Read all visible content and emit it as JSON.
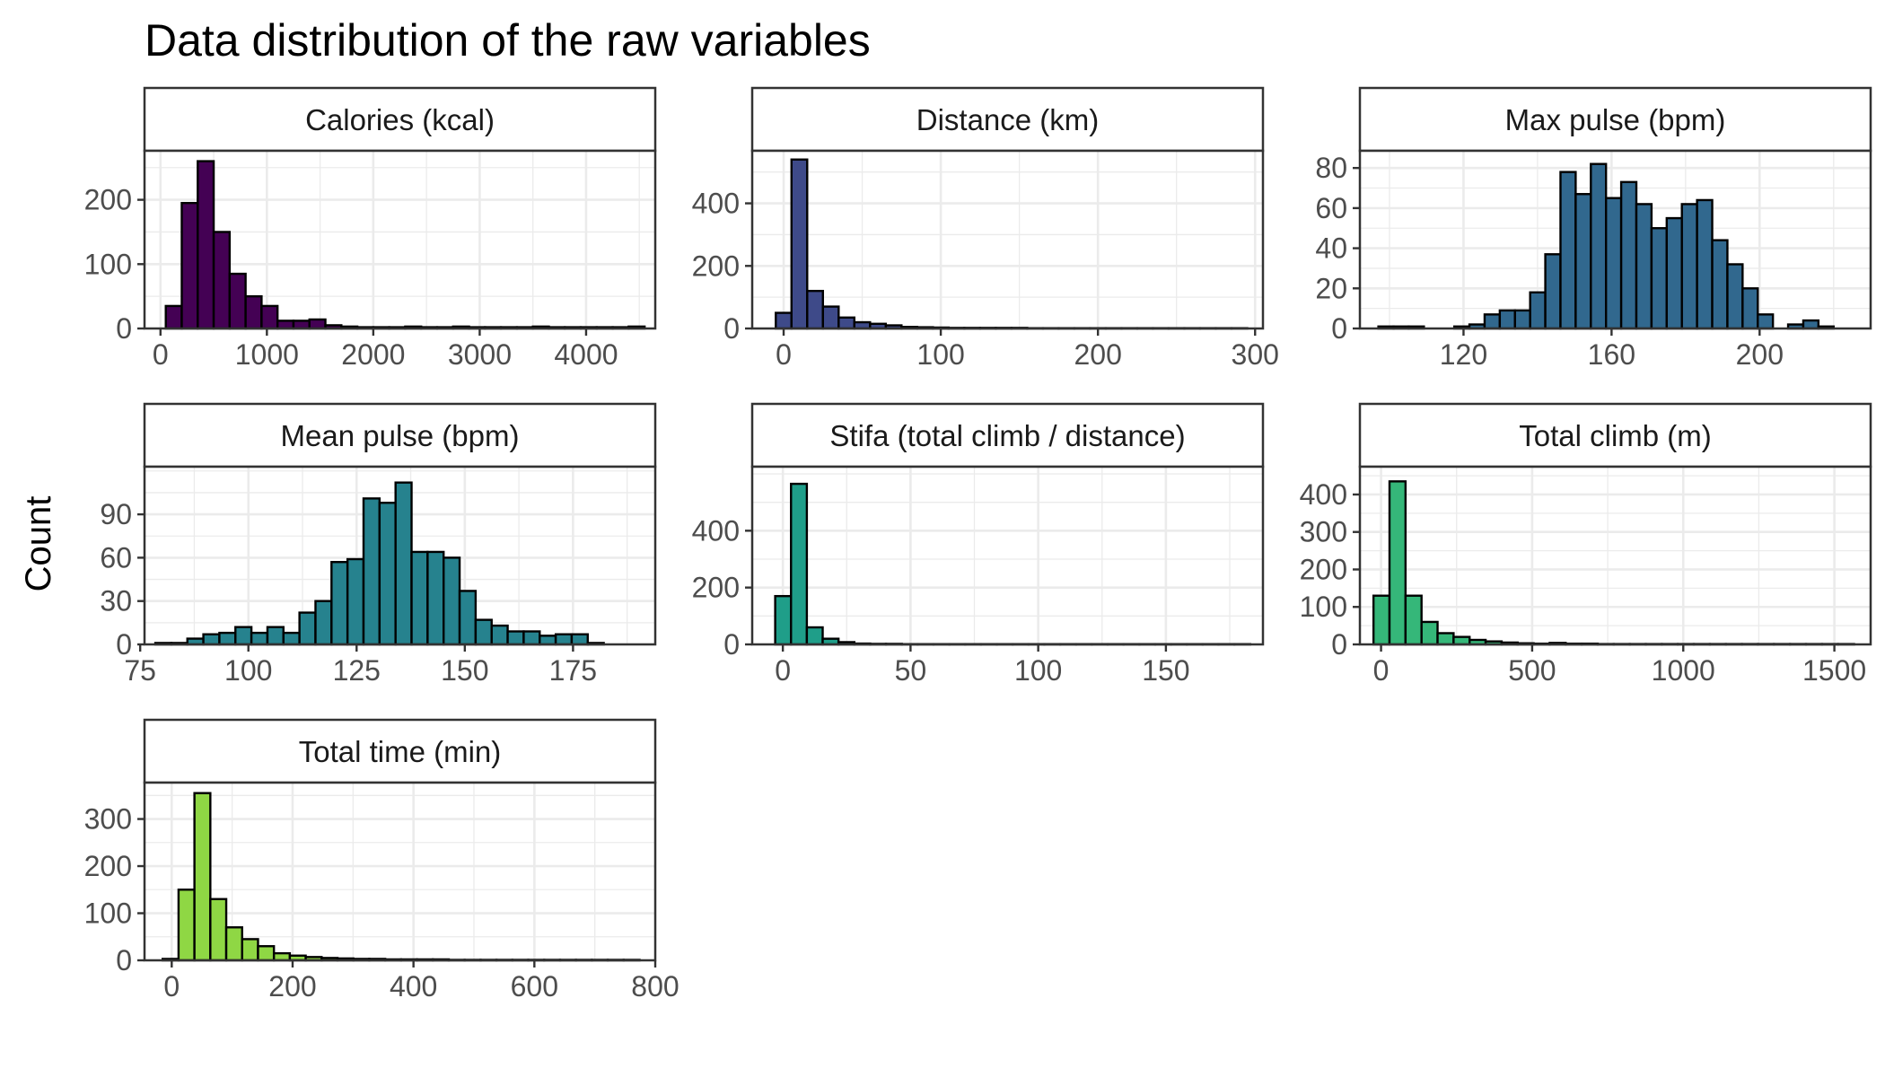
{
  "title": "Data distribution of the raw variables",
  "ylabel": "Count",
  "chart_data": [
    {
      "type": "bar",
      "histogram": true,
      "panel": "Calories (kcal)",
      "color": "#440154",
      "bin_start": 50,
      "bin_width": 150,
      "values": [
        35,
        195,
        260,
        150,
        85,
        50,
        35,
        12,
        12,
        14,
        5,
        3,
        2,
        2,
        2,
        3,
        2,
        2,
        3,
        2,
        2,
        2,
        2,
        3,
        2,
        2,
        2,
        2,
        2,
        3
      ],
      "xlim": [
        -150,
        4650
      ],
      "ylim": [
        0,
        265
      ],
      "xticks": [
        0,
        1000,
        2000,
        3000,
        4000
      ],
      "xtick_labels": [
        "0",
        "1000",
        "2000",
        "3000",
        "4000"
      ],
      "yticks": [
        0,
        100,
        200
      ],
      "ytick_labels": [
        "0",
        "100",
        "200"
      ]
    },
    {
      "type": "bar",
      "histogram": true,
      "panel": "Distance (km)",
      "color": "#3e4a89",
      "bin_start": -5,
      "bin_width": 10,
      "values": [
        50,
        540,
        120,
        70,
        35,
        20,
        15,
        10,
        5,
        4,
        3,
        2,
        2,
        2,
        2,
        2,
        1,
        1,
        1,
        1,
        1,
        1,
        1,
        1,
        1,
        1,
        1,
        1,
        1,
        1
      ],
      "xlim": [
        -20,
        305
      ],
      "ylim": [
        0,
        545
      ],
      "xticks": [
        0,
        100,
        200,
        300
      ],
      "xtick_labels": [
        "0",
        "100",
        "200",
        "300"
      ],
      "yticks": [
        0,
        200,
        400
      ],
      "ytick_labels": [
        "0",
        "200",
        "400"
      ]
    },
    {
      "type": "bar",
      "histogram": true,
      "panel": "Max pulse (bpm)",
      "color": "#31688e",
      "bin_start": 97,
      "bin_width": 4.1,
      "values": [
        1,
        1,
        1,
        0,
        0,
        1,
        2,
        7,
        9,
        9,
        18,
        37,
        78,
        67,
        82,
        65,
        73,
        62,
        50,
        55,
        62,
        64,
        44,
        32,
        20,
        7,
        0,
        2,
        4,
        1
      ],
      "xlim": [
        92,
        230
      ],
      "ylim": [
        0,
        85
      ],
      "xticks": [
        120,
        160,
        200
      ],
      "xtick_labels": [
        "120",
        "160",
        "200"
      ],
      "yticks": [
        0,
        20,
        40,
        60,
        80
      ],
      "ytick_labels": [
        "0",
        "20",
        "40",
        "60",
        "80"
      ]
    },
    {
      "type": "bar",
      "histogram": true,
      "panel": "Mean pulse (bpm)",
      "color": "#26828e",
      "bin_start": 78.5,
      "bin_width": 3.7,
      "values": [
        1,
        1,
        4,
        7,
        8,
        12,
        8,
        12,
        8,
        22,
        30,
        57,
        59,
        101,
        98,
        112,
        64,
        64,
        60,
        37,
        17,
        13,
        9,
        9,
        6,
        7,
        7,
        1
      ],
      "xlim": [
        76,
        194
      ],
      "ylim": [
        0,
        118
      ],
      "xticks": [
        75,
        100,
        125,
        150,
        175
      ],
      "xtick_labels": [
        "75",
        "100",
        "125",
        "150",
        "175"
      ],
      "yticks": [
        0,
        30,
        60,
        90
      ],
      "ytick_labels": [
        "0",
        "30",
        "60",
        "90"
      ]
    },
    {
      "type": "bar",
      "histogram": true,
      "panel": "Stifa (total climb / distance)",
      "color": "#1f9e89",
      "bin_start": -3,
      "bin_width": 6.2,
      "values": [
        170,
        565,
        60,
        20,
        8,
        3,
        2,
        2,
        1,
        1,
        1,
        1,
        1,
        1,
        1,
        1,
        1,
        1,
        1,
        1,
        1,
        1,
        1,
        1,
        1,
        1,
        1,
        1,
        1,
        1
      ],
      "xlim": [
        -12,
        188
      ],
      "ylim": [
        0,
        600
      ],
      "xticks": [
        0,
        50,
        100,
        150
      ],
      "xtick_labels": [
        "0",
        "50",
        "100",
        "150"
      ],
      "yticks": [
        0,
        200,
        400
      ],
      "ytick_labels": [
        "0",
        "200",
        "400"
      ]
    },
    {
      "type": "bar",
      "histogram": true,
      "panel": "Total climb (m)",
      "color": "#35b779",
      "bin_start": -25,
      "bin_width": 53,
      "values": [
        130,
        435,
        130,
        60,
        30,
        20,
        12,
        8,
        5,
        3,
        2,
        4,
        2,
        2,
        1,
        1,
        1,
        1,
        1,
        1,
        1,
        1,
        1,
        1,
        1,
        1,
        1,
        1,
        1,
        1
      ],
      "xlim": [
        -70,
        1620
      ],
      "ylim": [
        0,
        455
      ],
      "xticks": [
        0,
        500,
        1000,
        1500
      ],
      "xtick_labels": [
        "0",
        "500",
        "1000",
        "1500"
      ],
      "yticks": [
        0,
        100,
        200,
        300,
        400
      ],
      "ytick_labels": [
        "0",
        "100",
        "200",
        "300",
        "400"
      ]
    },
    {
      "type": "bar",
      "histogram": true,
      "panel": "Total time (min)",
      "color": "#8fd744",
      "bin_start": -15,
      "bin_width": 26.3,
      "values": [
        3,
        150,
        355,
        130,
        70,
        45,
        30,
        15,
        10,
        7,
        5,
        4,
        3,
        3,
        2,
        2,
        2,
        2,
        1,
        1,
        1,
        1,
        1,
        1,
        1,
        1,
        1,
        1,
        1,
        1
      ],
      "xlim": [
        -45,
        800
      ],
      "ylim": [
        0,
        362
      ],
      "xticks": [
        0,
        200,
        400,
        600,
        800
      ],
      "xtick_labels": [
        "0",
        "200",
        "400",
        "600",
        "800"
      ],
      "yticks": [
        0,
        100,
        200,
        300
      ],
      "ytick_labels": [
        "0",
        "100",
        "200",
        "300"
      ]
    }
  ]
}
